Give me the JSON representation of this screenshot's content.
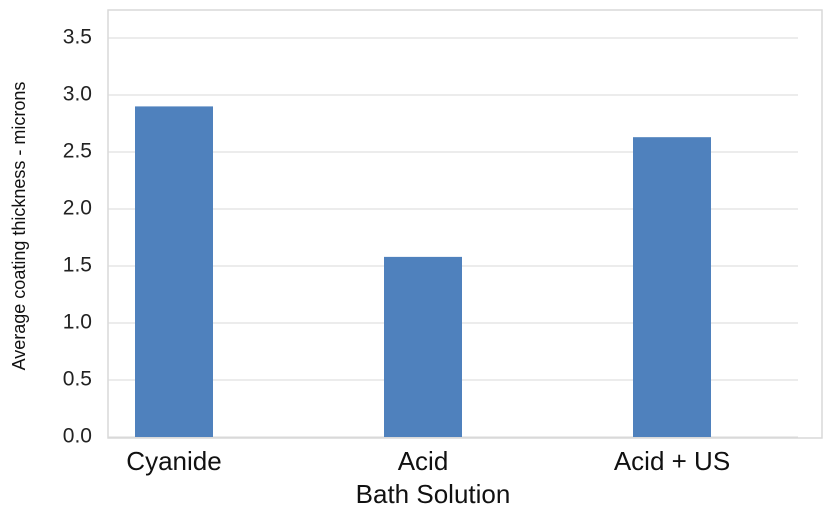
{
  "chart_data": {
    "type": "bar",
    "categories": [
      "Cyanide",
      "Acid",
      "Acid + US"
    ],
    "values": [
      2.9,
      1.58,
      2.63
    ],
    "xlabel": "Bath Solution",
    "ylabel": "Average coating thickness - microns",
    "ylim": [
      0.0,
      3.5
    ],
    "yticks": [
      "0.0",
      "0.5",
      "1.0",
      "1.5",
      "2.0",
      "2.5",
      "3.0",
      "3.5"
    ],
    "grid": true,
    "legend": "none",
    "bar_color": "#4f81bd"
  }
}
